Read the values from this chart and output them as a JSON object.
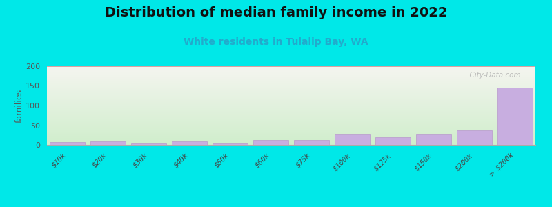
{
  "title": "Distribution of median family income in 2022",
  "subtitle": "White residents in Tulalip Bay, WA",
  "watermark": "City-Data.com",
  "categories": [
    "$10k",
    "$20k",
    "$30k",
    "$40k",
    "$50k",
    "$60k",
    "$75k",
    "$100k",
    "$125k",
    "$150k",
    "$200k",
    "> $200k"
  ],
  "values": [
    7,
    9,
    5,
    9,
    5,
    13,
    13,
    28,
    20,
    28,
    37,
    145
  ],
  "bar_color": "#c8aee0",
  "bar_edge_color": "#b898cc",
  "background_outer": "#00e8e8",
  "plot_bg_top": "#f5f5f0",
  "plot_bg_bottom": "#d0eecc",
  "title_color": "#111111",
  "subtitle_color": "#22aacc",
  "ylabel": "families",
  "ylim": [
    0,
    200
  ],
  "yticks": [
    0,
    50,
    100,
    150,
    200
  ],
  "grid_color": "#dda0a0",
  "title_fontsize": 14,
  "subtitle_fontsize": 10,
  "watermark_color": "#aaaaaa"
}
